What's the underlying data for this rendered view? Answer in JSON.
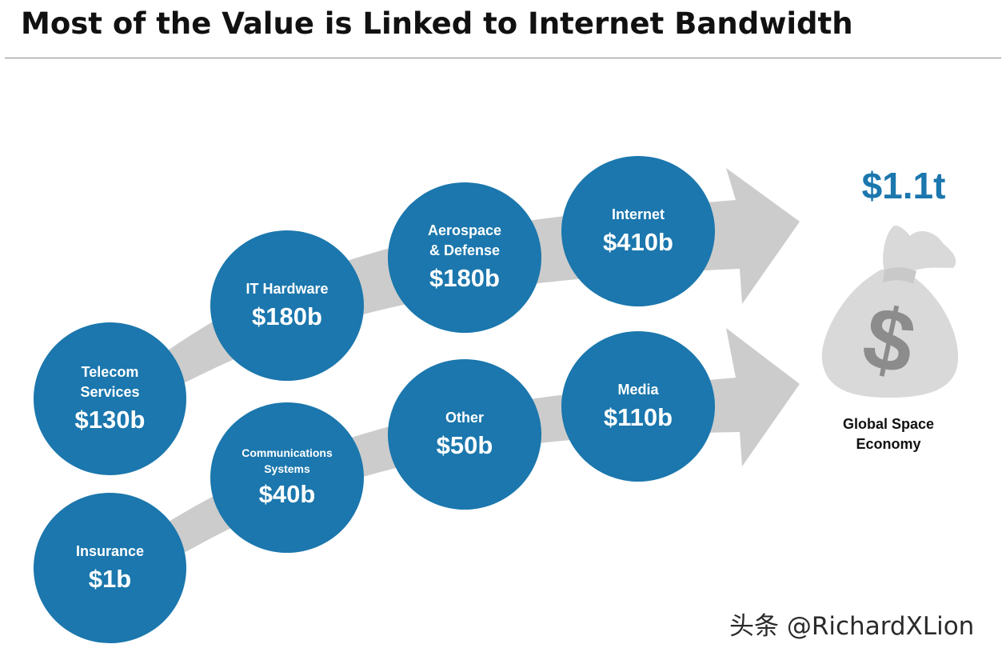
{
  "header": {
    "title": "Most of the Value is Linked to Internet Bandwidth"
  },
  "flows": {
    "upper": [
      {
        "label": "Telecom Services",
        "value": "$130b"
      },
      {
        "label": "IT Hardware",
        "value": "$180b"
      },
      {
        "label": "Aerospace & Defense",
        "value": "$180b"
      },
      {
        "label": "Internet",
        "value": "$410b"
      }
    ],
    "lower": [
      {
        "label": "Insurance",
        "value": "$1b"
      },
      {
        "label": "Communications Systems",
        "value": "$40b"
      },
      {
        "label": "Other",
        "value": "$50b"
      },
      {
        "label": "Media",
        "value": "$110b"
      }
    ]
  },
  "summary": {
    "total": "$1.1t",
    "label": "Global Space Economy",
    "icon": "money-bag-icon"
  },
  "watermark": "头条 @RichardXLion",
  "colors": {
    "circle": "#1b77ad",
    "arrow": "#cccccc",
    "total": "#1b77ad",
    "bag": "#d9d9d9",
    "dollar": "#8c8c8c"
  }
}
